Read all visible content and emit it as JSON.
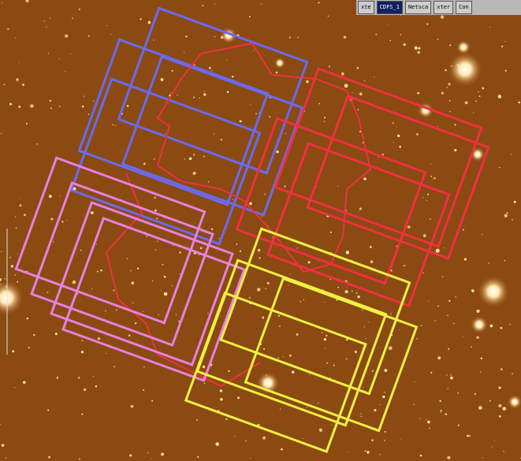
{
  "taskbar": {
    "buttons": [
      "xte",
      "CDFS_1",
      "Netsca",
      "xter",
      "Con"
    ]
  }
}
